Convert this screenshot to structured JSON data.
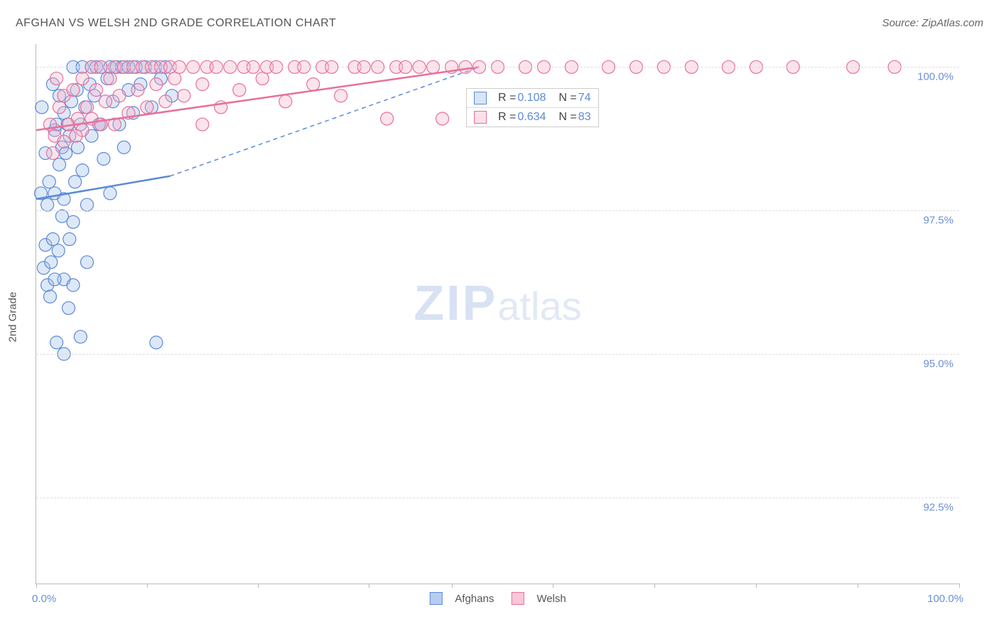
{
  "title": "AFGHAN VS WELSH 2ND GRADE CORRELATION CHART",
  "source": "Source: ZipAtlas.com",
  "watermark": {
    "bold": "ZIP",
    "light": "atlas"
  },
  "ylabel": "2nd Grade",
  "chart": {
    "type": "scatter",
    "background_color": "#ffffff",
    "grid_color": "#dddddd",
    "axis_color": "#bbbbbb",
    "tick_label_color": "#6b8fd6",
    "xlim": [
      0,
      100
    ],
    "ylim": [
      91.0,
      100.4
    ],
    "xticks": [
      0,
      12,
      24,
      36,
      45,
      56,
      67,
      78,
      89,
      100
    ],
    "yticks": [
      92.5,
      95.0,
      97.5,
      100.0
    ],
    "ytick_labels": [
      "92.5%",
      "95.0%",
      "97.5%",
      "100.0%"
    ],
    "xstart_label": "0.0%",
    "xend_label": "100.0%",
    "marker_radius": 9,
    "marker_fill_opacity": 0.35,
    "marker_stroke_width": 1.2,
    "series": [
      {
        "name": "Afghans",
        "r": "0.108",
        "n": "74",
        "color": "#5b8ad6",
        "fill": "#9fbce9",
        "trend": {
          "x1": 0,
          "y1": 97.7,
          "x2": 14.5,
          "y2": 98.1,
          "solid_xend": 14.5,
          "dash_x2": 48,
          "dash_y2": 100.0
        },
        "points": [
          [
            0.5,
            97.8
          ],
          [
            0.8,
            96.5
          ],
          [
            1.0,
            96.9
          ],
          [
            1.2,
            97.6
          ],
          [
            1.2,
            96.2
          ],
          [
            1.4,
            98.0
          ],
          [
            1.5,
            96.0
          ],
          [
            1.6,
            96.6
          ],
          [
            1.8,
            97.0
          ],
          [
            2.0,
            97.8
          ],
          [
            2.0,
            98.9
          ],
          [
            2.2,
            99.0
          ],
          [
            2.2,
            95.2
          ],
          [
            2.4,
            96.8
          ],
          [
            2.5,
            98.3
          ],
          [
            2.8,
            97.4
          ],
          [
            2.8,
            98.6
          ],
          [
            3.0,
            99.2
          ],
          [
            3.0,
            97.7
          ],
          [
            3.0,
            96.3
          ],
          [
            3.2,
            98.5
          ],
          [
            3.4,
            99.0
          ],
          [
            3.6,
            97.0
          ],
          [
            3.6,
            98.8
          ],
          [
            3.8,
            99.4
          ],
          [
            4.0,
            100.0
          ],
          [
            4.0,
            97.3
          ],
          [
            4.2,
            98.0
          ],
          [
            4.4,
            99.6
          ],
          [
            4.5,
            98.6
          ],
          [
            4.8,
            99.0
          ],
          [
            5.0,
            100.0
          ],
          [
            5.0,
            98.2
          ],
          [
            5.3,
            99.3
          ],
          [
            5.5,
            97.6
          ],
          [
            5.8,
            99.7
          ],
          [
            6.0,
            100.0
          ],
          [
            6.0,
            98.8
          ],
          [
            6.3,
            99.5
          ],
          [
            6.5,
            100.0
          ],
          [
            7.0,
            99.0
          ],
          [
            7.0,
            100.0
          ],
          [
            7.3,
            98.4
          ],
          [
            7.7,
            99.8
          ],
          [
            8.0,
            100.0
          ],
          [
            8.0,
            97.8
          ],
          [
            8.3,
            99.4
          ],
          [
            8.7,
            100.0
          ],
          [
            9.0,
            99.0
          ],
          [
            9.3,
            100.0
          ],
          [
            9.5,
            98.6
          ],
          [
            10.0,
            99.6
          ],
          [
            10.0,
            100.0
          ],
          [
            10.5,
            99.2
          ],
          [
            10.8,
            100.0
          ],
          [
            11.3,
            99.7
          ],
          [
            11.8,
            100.0
          ],
          [
            12.5,
            99.3
          ],
          [
            12.9,
            100.0
          ],
          [
            13.5,
            99.8
          ],
          [
            14.0,
            100.0
          ],
          [
            14.7,
            99.5
          ],
          [
            4.8,
            95.3
          ],
          [
            3.0,
            95.0
          ],
          [
            2.0,
            96.3
          ],
          [
            5.5,
            96.6
          ],
          [
            3.5,
            95.8
          ],
          [
            4.0,
            96.2
          ],
          [
            1.0,
            98.5
          ],
          [
            2.5,
            99.5
          ],
          [
            6.8,
            99.0
          ],
          [
            1.8,
            99.7
          ],
          [
            13.0,
            95.2
          ],
          [
            0.6,
            99.3
          ]
        ]
      },
      {
        "name": "Welsh",
        "r": "0.634",
        "n": "83",
        "color": "#e76f9b",
        "fill": "#f5b1c8",
        "trend": {
          "x1": 0,
          "y1": 98.9,
          "x2": 48,
          "y2": 100.0,
          "solid_xend": 48,
          "dash_x2": 48,
          "dash_y2": 100.0
        },
        "points": [
          [
            1.5,
            99.0
          ],
          [
            2.0,
            98.8
          ],
          [
            2.5,
            99.3
          ],
          [
            3.0,
            99.5
          ],
          [
            3.0,
            98.7
          ],
          [
            3.5,
            99.0
          ],
          [
            4.0,
            99.6
          ],
          [
            4.5,
            99.1
          ],
          [
            5.0,
            99.8
          ],
          [
            5.0,
            98.9
          ],
          [
            5.5,
            99.3
          ],
          [
            6.0,
            100.0
          ],
          [
            6.0,
            99.1
          ],
          [
            6.5,
            99.6
          ],
          [
            7.0,
            99.0
          ],
          [
            7.0,
            100.0
          ],
          [
            7.5,
            99.4
          ],
          [
            8.0,
            99.8
          ],
          [
            8.5,
            99.0
          ],
          [
            8.5,
            100.0
          ],
          [
            9.0,
            99.5
          ],
          [
            9.5,
            100.0
          ],
          [
            10.0,
            99.2
          ],
          [
            10.5,
            100.0
          ],
          [
            11.0,
            99.6
          ],
          [
            11.5,
            100.0
          ],
          [
            12.0,
            99.3
          ],
          [
            12.5,
            100.0
          ],
          [
            13.0,
            99.7
          ],
          [
            13.5,
            100.0
          ],
          [
            14.0,
            99.4
          ],
          [
            14.5,
            100.0
          ],
          [
            15.0,
            99.8
          ],
          [
            15.5,
            100.0
          ],
          [
            16.0,
            99.5
          ],
          [
            17.0,
            100.0
          ],
          [
            18.0,
            99.7
          ],
          [
            18.5,
            100.0
          ],
          [
            19.5,
            100.0
          ],
          [
            20.0,
            99.3
          ],
          [
            21.0,
            100.0
          ],
          [
            22.0,
            99.6
          ],
          [
            22.5,
            100.0
          ],
          [
            23.5,
            100.0
          ],
          [
            24.5,
            99.8
          ],
          [
            25.0,
            100.0
          ],
          [
            26.0,
            100.0
          ],
          [
            27.0,
            99.4
          ],
          [
            28.0,
            100.0
          ],
          [
            29.0,
            100.0
          ],
          [
            30.0,
            99.7
          ],
          [
            31.0,
            100.0
          ],
          [
            32.0,
            100.0
          ],
          [
            33.0,
            99.5
          ],
          [
            34.5,
            100.0
          ],
          [
            35.5,
            100.0
          ],
          [
            37.0,
            100.0
          ],
          [
            38.0,
            99.1
          ],
          [
            39.0,
            100.0
          ],
          [
            40.0,
            100.0
          ],
          [
            41.5,
            100.0
          ],
          [
            43.0,
            100.0
          ],
          [
            44.0,
            99.1
          ],
          [
            45.0,
            100.0
          ],
          [
            46.5,
            100.0
          ],
          [
            48.0,
            100.0
          ],
          [
            50.0,
            100.0
          ],
          [
            53.0,
            100.0
          ],
          [
            55.0,
            100.0
          ],
          [
            58.0,
            100.0
          ],
          [
            62.0,
            100.0
          ],
          [
            65.0,
            100.0
          ],
          [
            68.0,
            100.0
          ],
          [
            71.0,
            100.0
          ],
          [
            75.0,
            100.0
          ],
          [
            78.0,
            100.0
          ],
          [
            82.0,
            100.0
          ],
          [
            88.5,
            100.0
          ],
          [
            93.0,
            100.0
          ],
          [
            1.8,
            98.5
          ],
          [
            2.2,
            99.8
          ],
          [
            4.3,
            98.8
          ],
          [
            18.0,
            99.0
          ]
        ]
      }
    ]
  },
  "legend": [
    {
      "label": "Afghans",
      "color": "#5b8ad6",
      "fill": "#b8cdef"
    },
    {
      "label": "Welsh",
      "color": "#e76f9b",
      "fill": "#f8c8d9"
    }
  ]
}
